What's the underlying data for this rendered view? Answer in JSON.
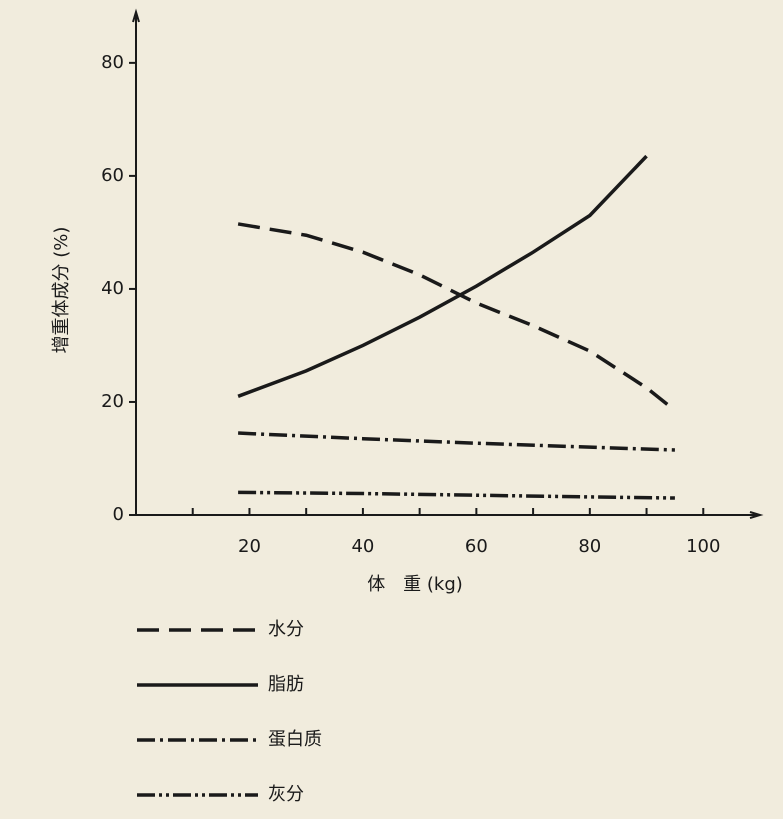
{
  "chart_data": {
    "type": "line",
    "xlabel": "体　重 (kg)",
    "ylabel": "增重体成分 (%)",
    "xlim": [
      0,
      110
    ],
    "ylim": [
      0,
      89
    ],
    "xticks": [
      20,
      40,
      60,
      80,
      100
    ],
    "xminorticks": [
      10,
      30,
      50,
      70,
      90
    ],
    "yticks": [
      0,
      20,
      40,
      60,
      80
    ],
    "series": [
      {
        "name": "水分",
        "color": "#1a1a1a",
        "dash": "dashed",
        "x": [
          18,
          30,
          40,
          50,
          60,
          70,
          80,
          90,
          95
        ],
        "values": [
          51.5,
          49.5,
          46.5,
          42.5,
          37.5,
          33.5,
          29,
          22.5,
          18.5
        ]
      },
      {
        "name": "脂肪",
        "color": "#1a1a1a",
        "dash": "solid",
        "x": [
          18,
          30,
          40,
          50,
          60,
          70,
          80,
          90
        ],
        "values": [
          21,
          25.5,
          30,
          35,
          40.5,
          46.5,
          53,
          63.5
        ]
      },
      {
        "name": "蛋白质",
        "color": "#1a1a1a",
        "dash": "dash-dot",
        "x": [
          18,
          40,
          60,
          80,
          95
        ],
        "values": [
          14.5,
          13.5,
          12.7,
          12,
          11.5
        ]
      },
      {
        "name": "灰分",
        "color": "#1a1a1a",
        "dash": "dash-dot-dot",
        "x": [
          18,
          40,
          60,
          80,
          95
        ],
        "values": [
          4,
          3.8,
          3.5,
          3.2,
          3
        ]
      }
    ]
  }
}
